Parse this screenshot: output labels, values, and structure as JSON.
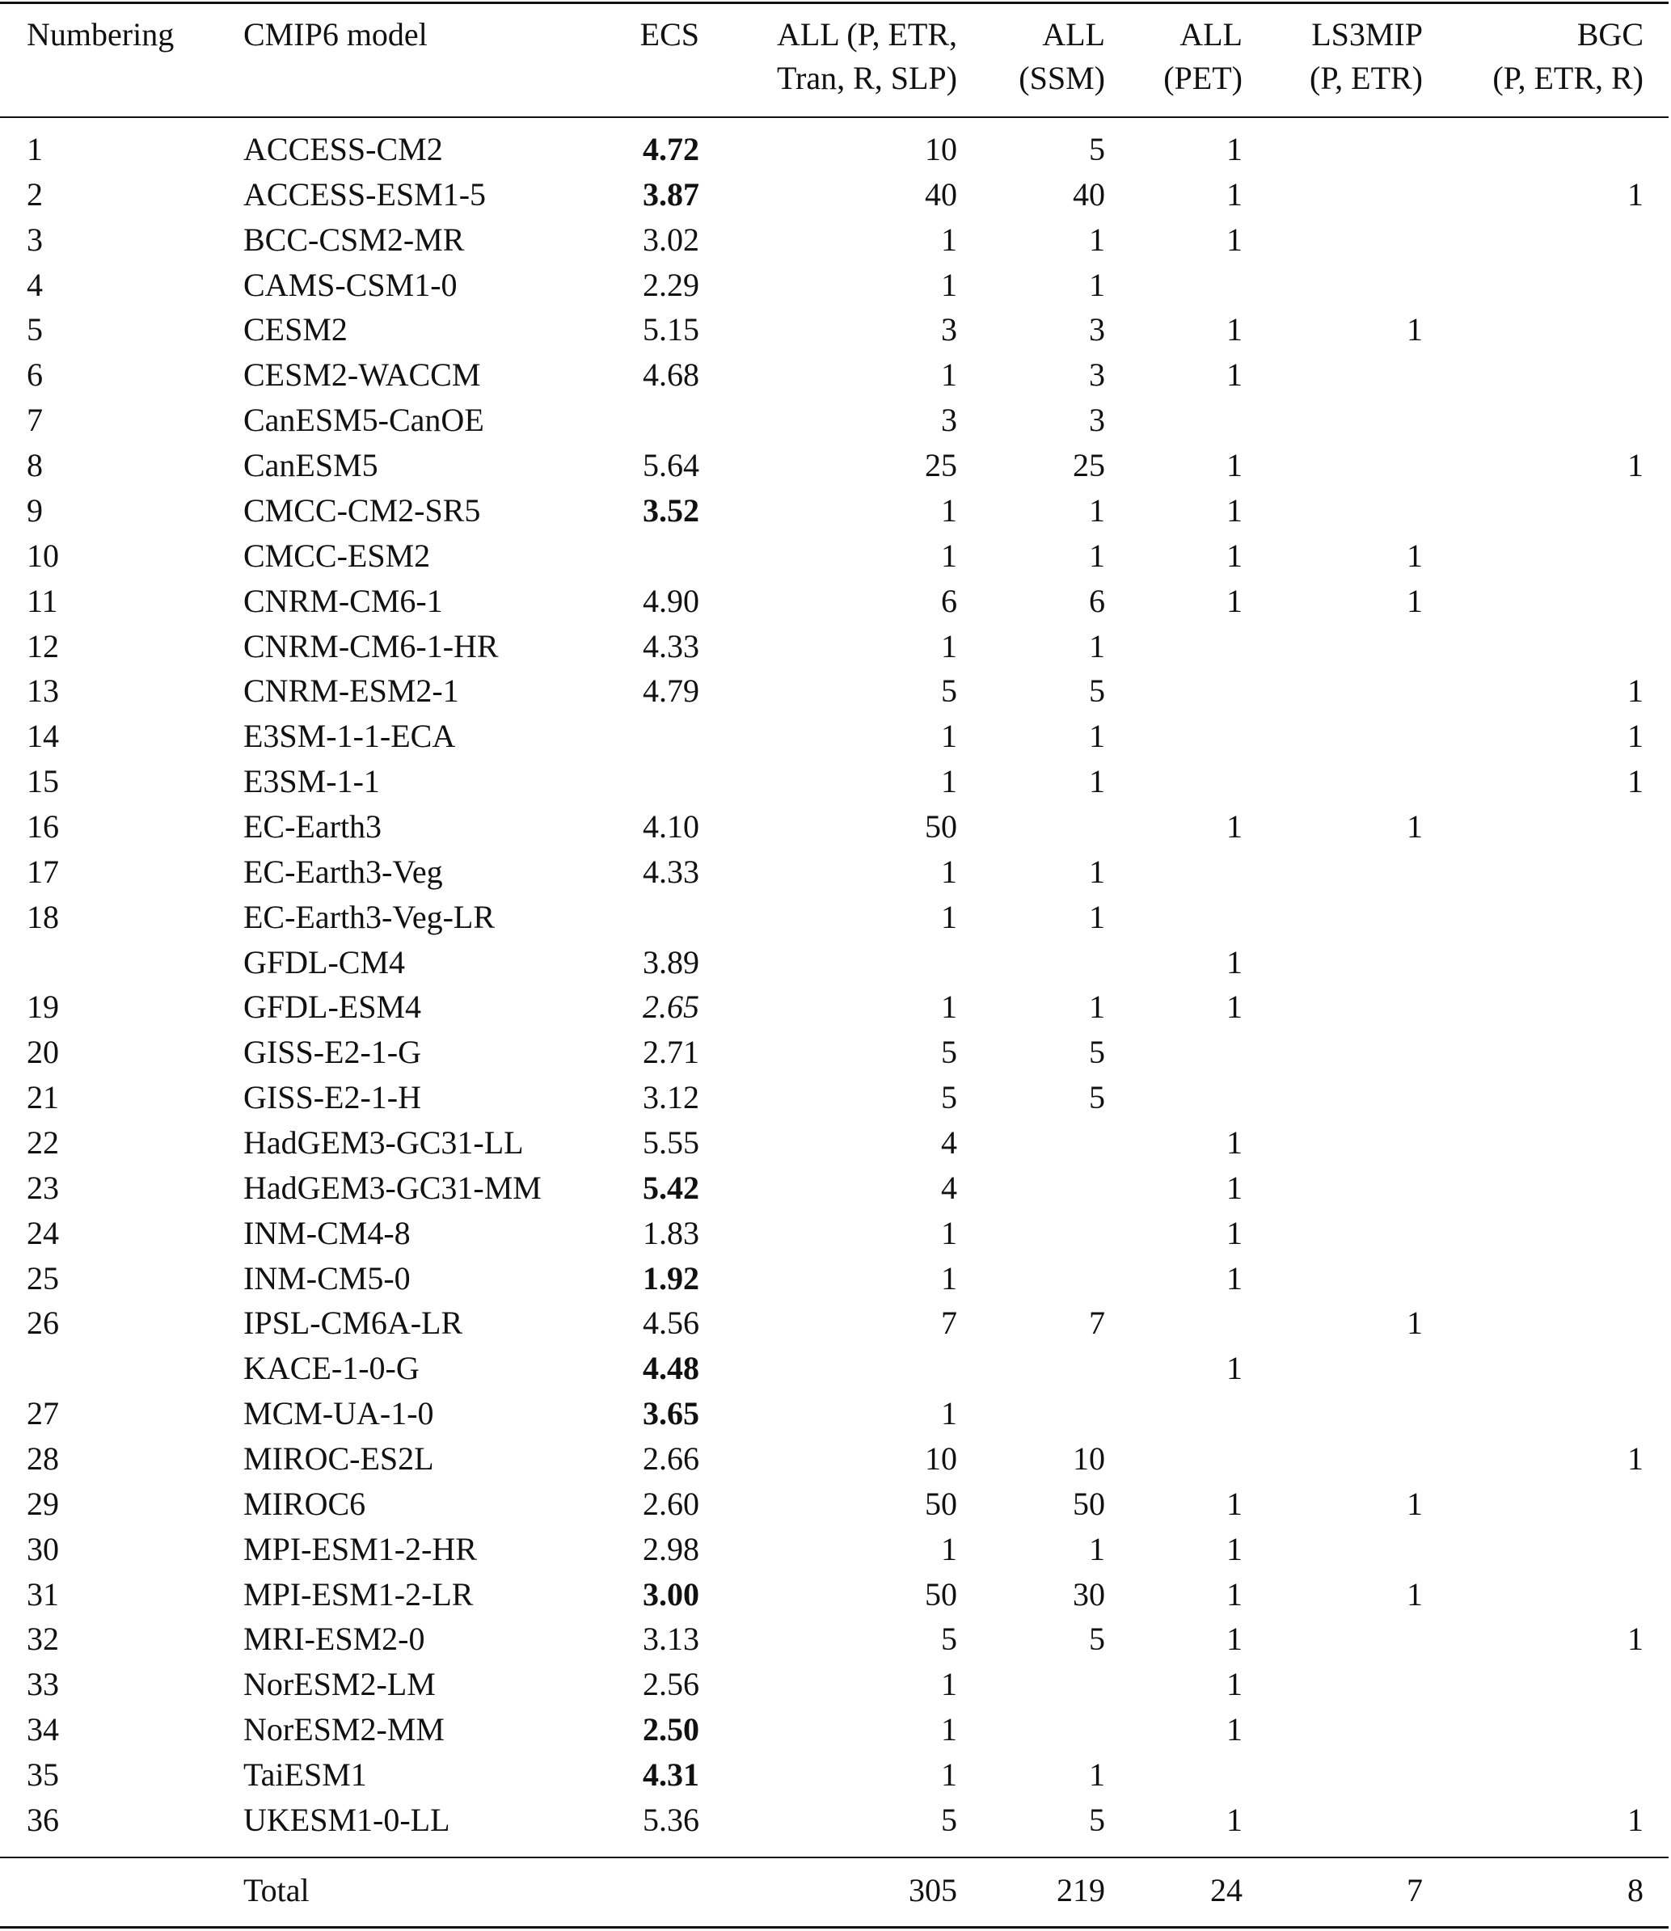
{
  "headers": {
    "numbering": "Numbering",
    "model": "CMIP6 model",
    "ecs": "ECS",
    "all1_line1": "ALL (P, ETR,",
    "all1_line2": "Tran, R, SLP)",
    "all2_line1": "ALL",
    "all2_line2": "(SSM)",
    "all3_line1": "ALL",
    "all3_line2": "(PET)",
    "ls3mip_line1": "LS3MIP",
    "ls3mip_line2": "(P, ETR)",
    "bgc_line1": "BGC",
    "bgc_line2": "(P, ETR, R)"
  },
  "rows": [
    {
      "num": "1",
      "model": "ACCESS-CM2",
      "ecs": "4.72",
      "ecs_style": "bold",
      "all": "10",
      "ssm": "5",
      "pet": "1",
      "ls3mip": "",
      "bgc": ""
    },
    {
      "num": "2",
      "model": "ACCESS-ESM1-5",
      "ecs": "3.87",
      "ecs_style": "bold",
      "all": "40",
      "ssm": "40",
      "pet": "1",
      "ls3mip": "",
      "bgc": "1"
    },
    {
      "num": "3",
      "model": "BCC-CSM2-MR",
      "ecs": "3.02",
      "ecs_style": "",
      "all": "1",
      "ssm": "1",
      "pet": "1",
      "ls3mip": "",
      "bgc": ""
    },
    {
      "num": "4",
      "model": "CAMS-CSM1-0",
      "ecs": "2.29",
      "ecs_style": "",
      "all": "1",
      "ssm": "1",
      "pet": "",
      "ls3mip": "",
      "bgc": ""
    },
    {
      "num": "5",
      "model": "CESM2",
      "ecs": "5.15",
      "ecs_style": "",
      "all": "3",
      "ssm": "3",
      "pet": "1",
      "ls3mip": "1",
      "bgc": ""
    },
    {
      "num": "6",
      "model": "CESM2-WACCM",
      "ecs": "4.68",
      "ecs_style": "",
      "all": "1",
      "ssm": "3",
      "pet": "1",
      "ls3mip": "",
      "bgc": ""
    },
    {
      "num": "7",
      "model": "CanESM5-CanOE",
      "ecs": "",
      "ecs_style": "",
      "all": "3",
      "ssm": "3",
      "pet": "",
      "ls3mip": "",
      "bgc": ""
    },
    {
      "num": "8",
      "model": "CanESM5",
      "ecs": "5.64",
      "ecs_style": "",
      "all": "25",
      "ssm": "25",
      "pet": "1",
      "ls3mip": "",
      "bgc": "1"
    },
    {
      "num": "9",
      "model": "CMCC-CM2-SR5",
      "ecs": "3.52",
      "ecs_style": "bold",
      "all": "1",
      "ssm": "1",
      "pet": "1",
      "ls3mip": "",
      "bgc": ""
    },
    {
      "num": "10",
      "model": "CMCC-ESM2",
      "ecs": "",
      "ecs_style": "",
      "all": "1",
      "ssm": "1",
      "pet": "1",
      "ls3mip": "1",
      "bgc": ""
    },
    {
      "num": "11",
      "model": "CNRM-CM6-1",
      "ecs": "4.90",
      "ecs_style": "",
      "all": "6",
      "ssm": "6",
      "pet": "1",
      "ls3mip": "1",
      "bgc": ""
    },
    {
      "num": "12",
      "model": "CNRM-CM6-1-HR",
      "ecs": "4.33",
      "ecs_style": "",
      "all": "1",
      "ssm": "1",
      "pet": "",
      "ls3mip": "",
      "bgc": ""
    },
    {
      "num": "13",
      "model": "CNRM-ESM2-1",
      "ecs": "4.79",
      "ecs_style": "",
      "all": "5",
      "ssm": "5",
      "pet": "",
      "ls3mip": "",
      "bgc": "1"
    },
    {
      "num": "14",
      "model": "E3SM-1-1-ECA",
      "ecs": "",
      "ecs_style": "",
      "all": "1",
      "ssm": "1",
      "pet": "",
      "ls3mip": "",
      "bgc": "1"
    },
    {
      "num": "15",
      "model": "E3SM-1-1",
      "ecs": "",
      "ecs_style": "",
      "all": "1",
      "ssm": "1",
      "pet": "",
      "ls3mip": "",
      "bgc": "1"
    },
    {
      "num": "16",
      "model": "EC-Earth3",
      "ecs": "4.10",
      "ecs_style": "",
      "all": "50",
      "ssm": "",
      "pet": "1",
      "ls3mip": "1",
      "bgc": ""
    },
    {
      "num": "17",
      "model": "EC-Earth3-Veg",
      "ecs": "4.33",
      "ecs_style": "",
      "all": "1",
      "ssm": "1",
      "pet": "",
      "ls3mip": "",
      "bgc": ""
    },
    {
      "num": "18",
      "model": "EC-Earth3-Veg-LR",
      "ecs": "",
      "ecs_style": "",
      "all": "1",
      "ssm": "1",
      "pet": "",
      "ls3mip": "",
      "bgc": ""
    },
    {
      "num": "",
      "model": "GFDL-CM4",
      "ecs": "3.89",
      "ecs_style": "",
      "all": "",
      "ssm": "",
      "pet": "1",
      "ls3mip": "",
      "bgc": ""
    },
    {
      "num": "19",
      "model": "GFDL-ESM4",
      "ecs": "2.65",
      "ecs_style": "italic",
      "all": "1",
      "ssm": "1",
      "pet": "1",
      "ls3mip": "",
      "bgc": ""
    },
    {
      "num": "20",
      "model": "GISS-E2-1-G",
      "ecs": "2.71",
      "ecs_style": "",
      "all": "5",
      "ssm": "5",
      "pet": "",
      "ls3mip": "",
      "bgc": ""
    },
    {
      "num": "21",
      "model": "GISS-E2-1-H",
      "ecs": "3.12",
      "ecs_style": "",
      "all": "5",
      "ssm": "5",
      "pet": "",
      "ls3mip": "",
      "bgc": ""
    },
    {
      "num": "22",
      "model": "HadGEM3-GC31-LL",
      "ecs": "5.55",
      "ecs_style": "",
      "all": "4",
      "ssm": "",
      "pet": "1",
      "ls3mip": "",
      "bgc": ""
    },
    {
      "num": "23",
      "model": "HadGEM3-GC31-MM",
      "ecs": "5.42",
      "ecs_style": "bold",
      "all": "4",
      "ssm": "",
      "pet": "1",
      "ls3mip": "",
      "bgc": ""
    },
    {
      "num": "24",
      "model": "INM-CM4-8",
      "ecs": "1.83",
      "ecs_style": "",
      "all": "1",
      "ssm": "",
      "pet": "1",
      "ls3mip": "",
      "bgc": ""
    },
    {
      "num": "25",
      "model": "INM-CM5-0",
      "ecs": "1.92",
      "ecs_style": "bold",
      "all": "1",
      "ssm": "",
      "pet": "1",
      "ls3mip": "",
      "bgc": ""
    },
    {
      "num": "26",
      "model": "IPSL-CM6A-LR",
      "ecs": "4.56",
      "ecs_style": "",
      "all": "7",
      "ssm": "7",
      "pet": "",
      "ls3mip": "1",
      "bgc": ""
    },
    {
      "num": "",
      "model": "KACE-1-0-G",
      "ecs": "4.48",
      "ecs_style": "bold",
      "all": "",
      "ssm": "",
      "pet": "1",
      "ls3mip": "",
      "bgc": ""
    },
    {
      "num": "27",
      "model": "MCM-UA-1-0",
      "ecs": "3.65",
      "ecs_style": "bold",
      "all": "1",
      "ssm": "",
      "pet": "",
      "ls3mip": "",
      "bgc": ""
    },
    {
      "num": "28",
      "model": "MIROC-ES2L",
      "ecs": "2.66",
      "ecs_style": "",
      "all": "10",
      "ssm": "10",
      "pet": "",
      "ls3mip": "",
      "bgc": "1"
    },
    {
      "num": "29",
      "model": "MIROC6",
      "ecs": "2.60",
      "ecs_style": "",
      "all": "50",
      "ssm": "50",
      "pet": "1",
      "ls3mip": "1",
      "bgc": ""
    },
    {
      "num": "30",
      "model": "MPI-ESM1-2-HR",
      "ecs": "2.98",
      "ecs_style": "",
      "all": "1",
      "ssm": "1",
      "pet": "1",
      "ls3mip": "",
      "bgc": ""
    },
    {
      "num": "31",
      "model": "MPI-ESM1-2-LR",
      "ecs": "3.00",
      "ecs_style": "bold",
      "all": "50",
      "ssm": "30",
      "pet": "1",
      "ls3mip": "1",
      "bgc": ""
    },
    {
      "num": "32",
      "model": "MRI-ESM2-0",
      "ecs": "3.13",
      "ecs_style": "",
      "all": "5",
      "ssm": "5",
      "pet": "1",
      "ls3mip": "",
      "bgc": "1"
    },
    {
      "num": "33",
      "model": "NorESM2-LM",
      "ecs": "2.56",
      "ecs_style": "",
      "all": "1",
      "ssm": "",
      "pet": "1",
      "ls3mip": "",
      "bgc": ""
    },
    {
      "num": "34",
      "model": "NorESM2-MM",
      "ecs": "2.50",
      "ecs_style": "bold",
      "all": "1",
      "ssm": "",
      "pet": "1",
      "ls3mip": "",
      "bgc": ""
    },
    {
      "num": "35",
      "model": "TaiESM1",
      "ecs": "4.31",
      "ecs_style": "bold",
      "all": "1",
      "ssm": "1",
      "pet": "",
      "ls3mip": "",
      "bgc": ""
    },
    {
      "num": "36",
      "model": "UKESM1-0-LL",
      "ecs": "5.36",
      "ecs_style": "",
      "all": "5",
      "ssm": "5",
      "pet": "1",
      "ls3mip": "",
      "bgc": "1"
    }
  ],
  "total": {
    "label": "Total",
    "all": "305",
    "ssm": "219",
    "pet": "24",
    "ls3mip": "7",
    "bgc": "8"
  }
}
